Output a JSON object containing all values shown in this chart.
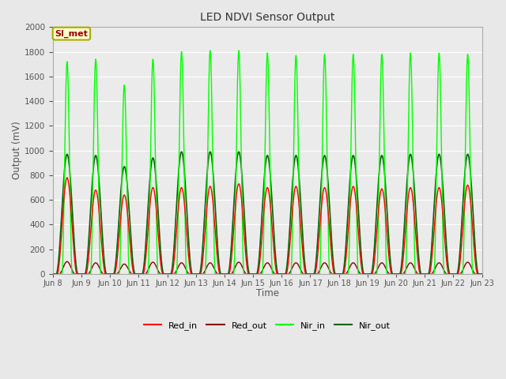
{
  "title": "LED NDVI Sensor Output",
  "xlabel": "Time",
  "ylabel": "Output (mV)",
  "ylim": [
    0,
    2000
  ],
  "fig_bg": "#e8e8e8",
  "plot_bg": "#ebebeb",
  "grid_color": "#ffffff",
  "annotation_text": "SI_met",
  "annotation_bg": "#ffffcc",
  "annotation_border": "#aaaa00",
  "annotation_text_color": "#990000",
  "series": {
    "Red_in": {
      "color": "#ff0000",
      "lw": 1.0
    },
    "Red_out": {
      "color": "#880000",
      "lw": 1.0
    },
    "Nir_in": {
      "color": "#00ff00",
      "lw": 1.0
    },
    "Nir_out": {
      "color": "#006600",
      "lw": 1.2
    }
  },
  "num_cycles": 15,
  "red_in_peaks": [
    780,
    680,
    640,
    700,
    700,
    710,
    730,
    700,
    710,
    700,
    710,
    690,
    700,
    700,
    720
  ],
  "red_out_peaks": [
    100,
    90,
    80,
    95,
    90,
    90,
    95,
    90,
    90,
    90,
    90,
    90,
    90,
    90,
    95
  ],
  "nir_in_peaks": [
    1720,
    1740,
    1530,
    1740,
    1800,
    1810,
    1810,
    1790,
    1770,
    1780,
    1780,
    1780,
    1790,
    1790,
    1780
  ],
  "nir_out_peaks": [
    970,
    960,
    870,
    940,
    990,
    990,
    990,
    960,
    960,
    960,
    960,
    960,
    970,
    970,
    970
  ],
  "tick_dates": [
    "Jun 8",
    "Jun 9",
    "Jun 10",
    "Jun 11",
    "Jun 12",
    "Jun 13",
    "Jun 14",
    "Jun 15",
    "Jun 16",
    "Jun 17",
    "Jun 18",
    "Jun 19",
    "Jun 20",
    "Jun 21",
    "Jun 22",
    "Jun 23"
  ]
}
